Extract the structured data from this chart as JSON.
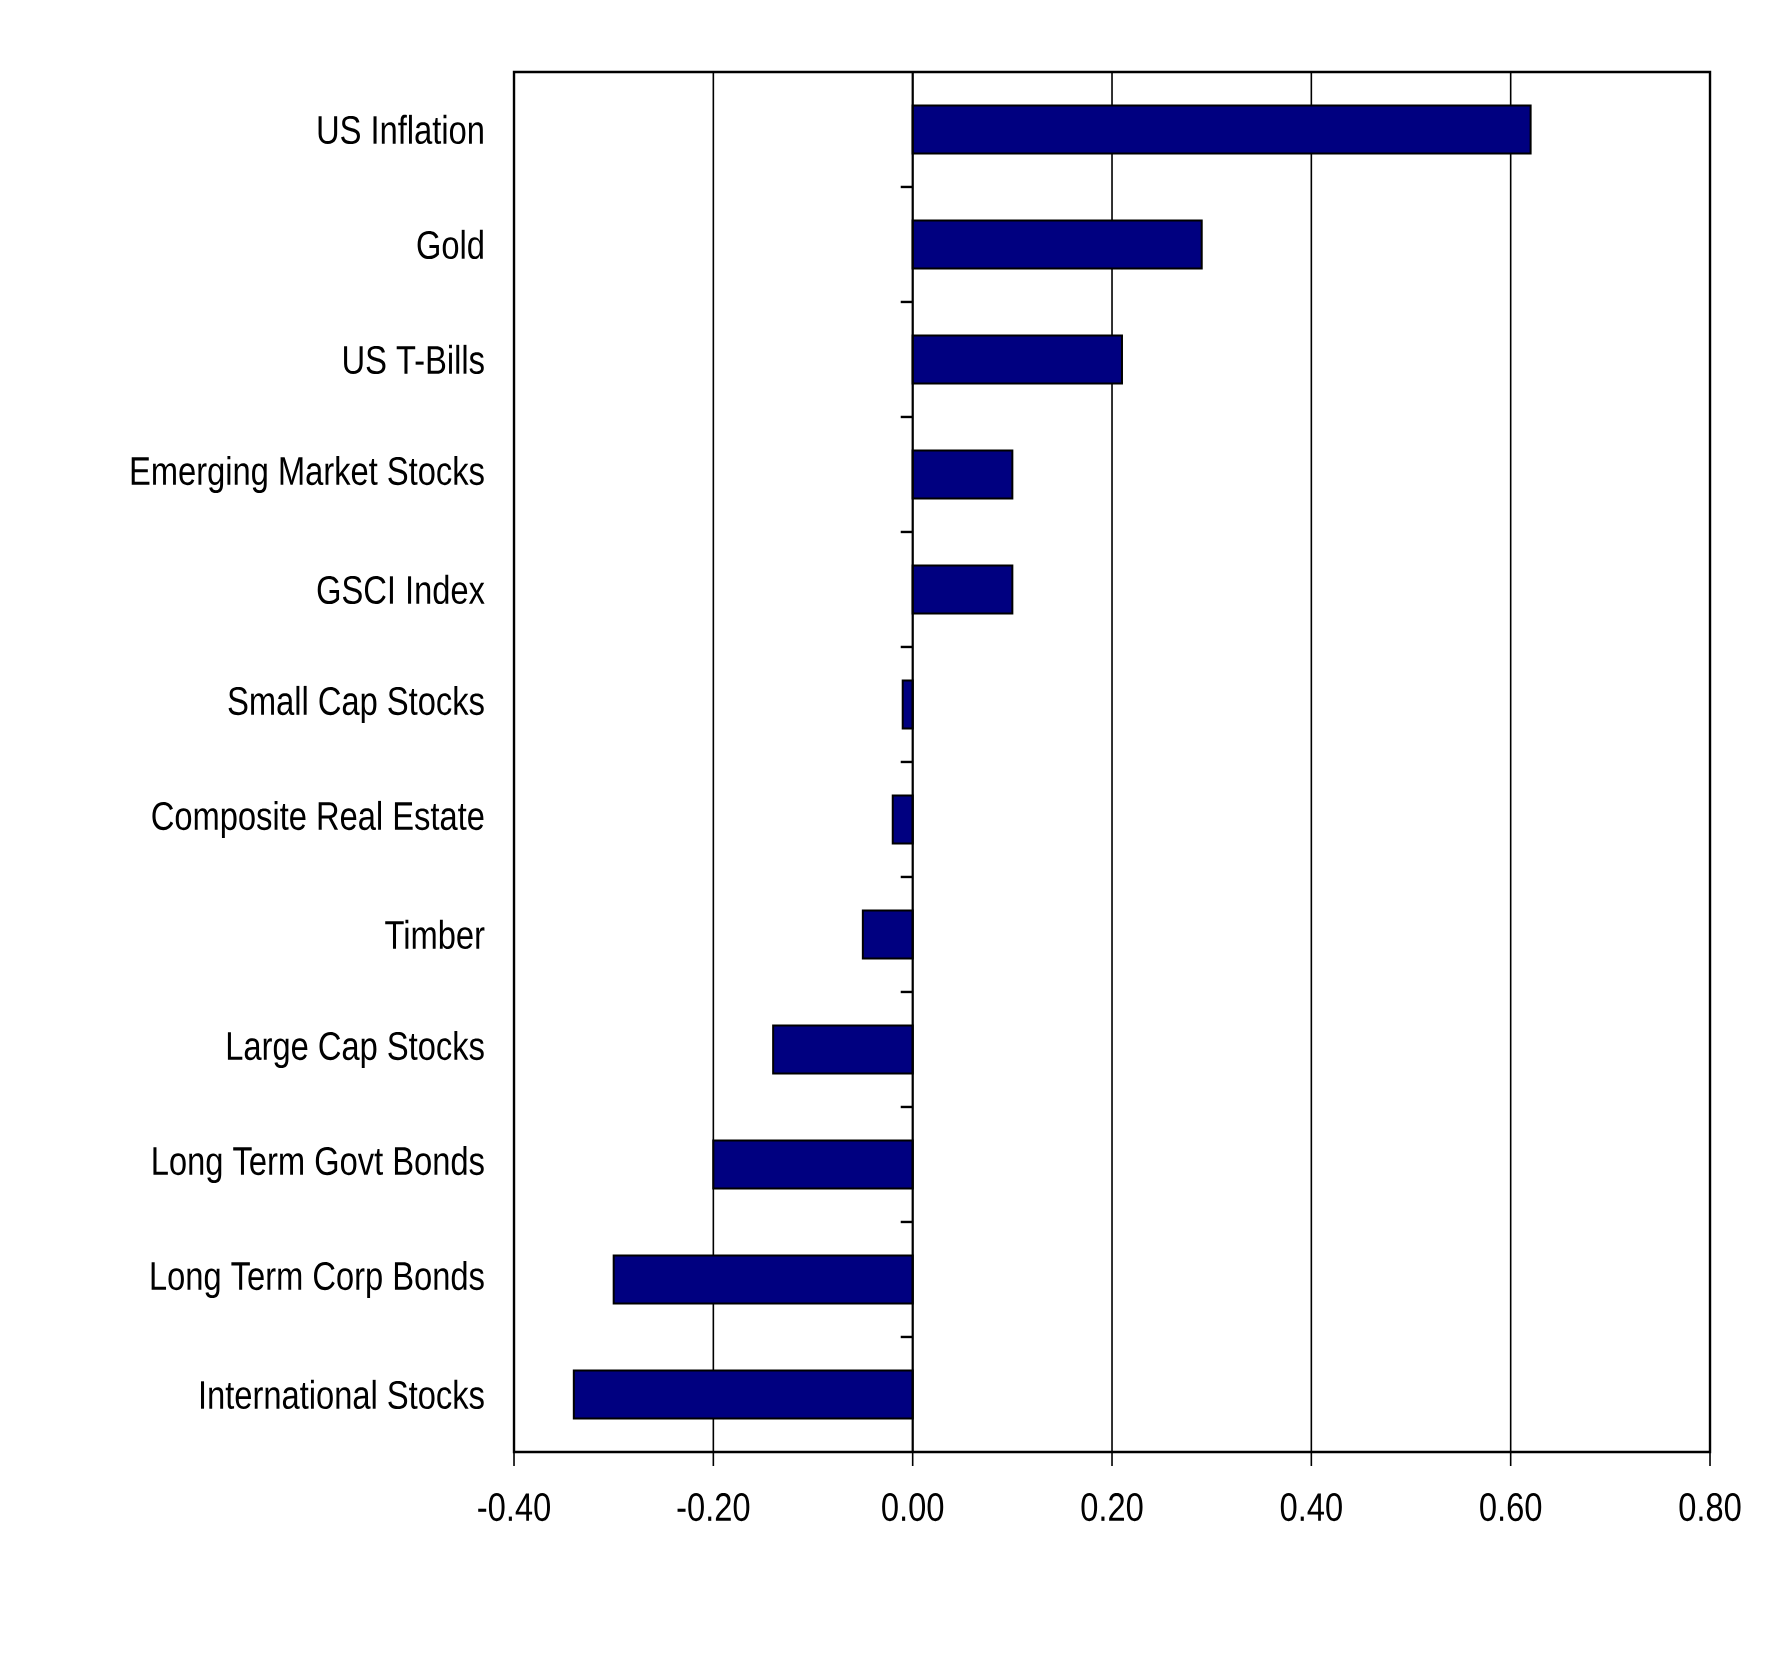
{
  "chart_data": {
    "type": "bar",
    "orientation": "horizontal",
    "categories": [
      "US Inflation",
      "Gold",
      "US T-Bills",
      "Emerging Market Stocks",
      "GSCI Index",
      "Small Cap Stocks",
      "Composite Real Estate",
      "Timber",
      "Large Cap Stocks",
      "Long Term Govt Bonds",
      "Long Term Corp Bonds",
      "International Stocks"
    ],
    "values": [
      0.62,
      0.29,
      0.21,
      0.1,
      0.1,
      -0.01,
      -0.02,
      -0.05,
      -0.14,
      -0.2,
      -0.3,
      -0.34
    ],
    "color": "#000080",
    "xlim": [
      -0.4,
      0.8
    ],
    "xticks": [
      {
        "value": -0.4,
        "label": "-0.40"
      },
      {
        "value": -0.2,
        "label": "-0.20"
      },
      {
        "value": 0,
        "label": "0.00"
      },
      {
        "value": 0.2,
        "label": "0.20"
      },
      {
        "value": 0.4,
        "label": "0.40"
      },
      {
        "value": 0.6,
        "label": "0.60"
      },
      {
        "value": 0.8,
        "label": "0.80"
      }
    ],
    "grid": "x"
  }
}
